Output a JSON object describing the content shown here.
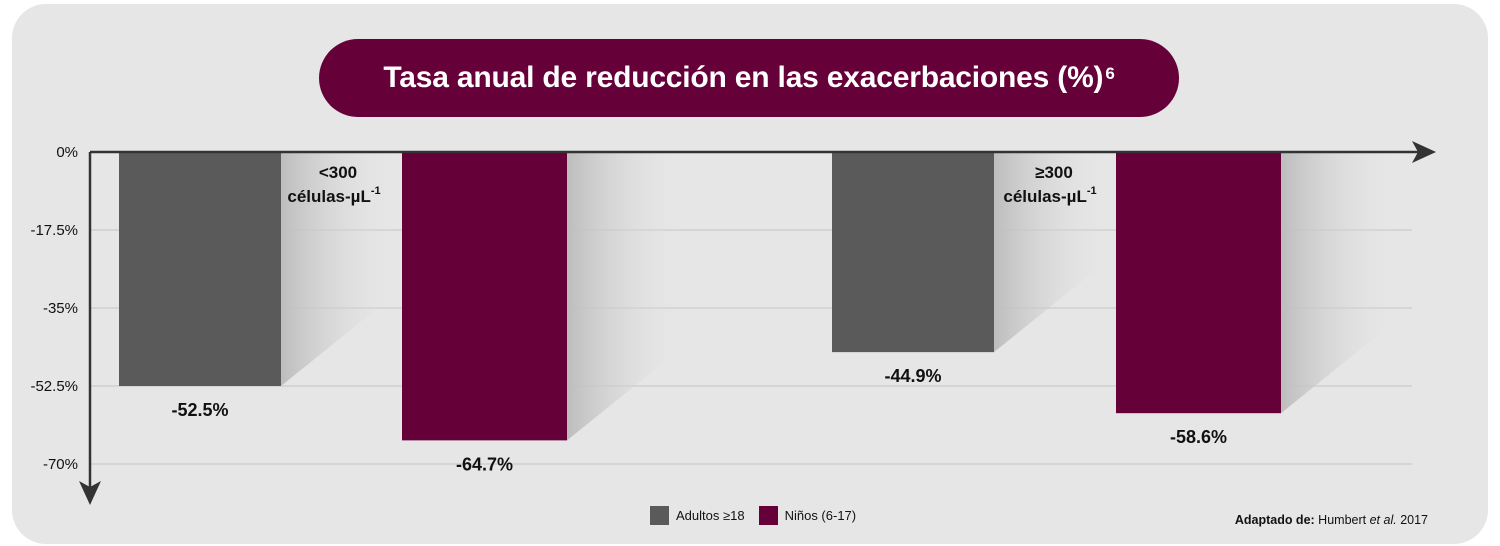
{
  "chart_data": {
    "type": "bar",
    "title": "Tasa anual de reducción en las exacerbaciones (%)",
    "title_superscript": "6",
    "categories": [
      {
        "label": "<300 células-µL",
        "superscript": "-1"
      },
      {
        "label": "≥300 células-µL",
        "superscript": "-1"
      }
    ],
    "series": [
      {
        "name": "Adultos ≥18",
        "color": "#5a5a5a",
        "values": [
          -52.5,
          -44.9
        ],
        "labels": [
          "-52.5%",
          "-44.9%"
        ]
      },
      {
        "name": "Niños (6-17)",
        "color": "#650039",
        "values": [
          -64.7,
          -58.6
        ],
        "labels": [
          "-64.7%",
          "-58.6%"
        ]
      }
    ],
    "y_ticks": [
      {
        "value": 0,
        "label": "0%"
      },
      {
        "value": -17.5,
        "label": "-17.5%"
      },
      {
        "value": -35,
        "label": "-35%"
      },
      {
        "value": -52.5,
        "label": "-52.5%"
      },
      {
        "value": -70,
        "label": "-70%"
      }
    ],
    "ylim": [
      -70,
      0
    ],
    "grid": true,
    "legend_position": "bottom-center"
  },
  "category_text": [
    {
      "line1": "<300",
      "line2": "células-µL",
      "sup": "-1"
    },
    {
      "line1": "≥300",
      "line2": "células-µL",
      "sup": "-1"
    }
  ],
  "source": {
    "label": "Adaptado de:",
    "author": "Humbert",
    "etal": "et al.",
    "year": "2017"
  }
}
